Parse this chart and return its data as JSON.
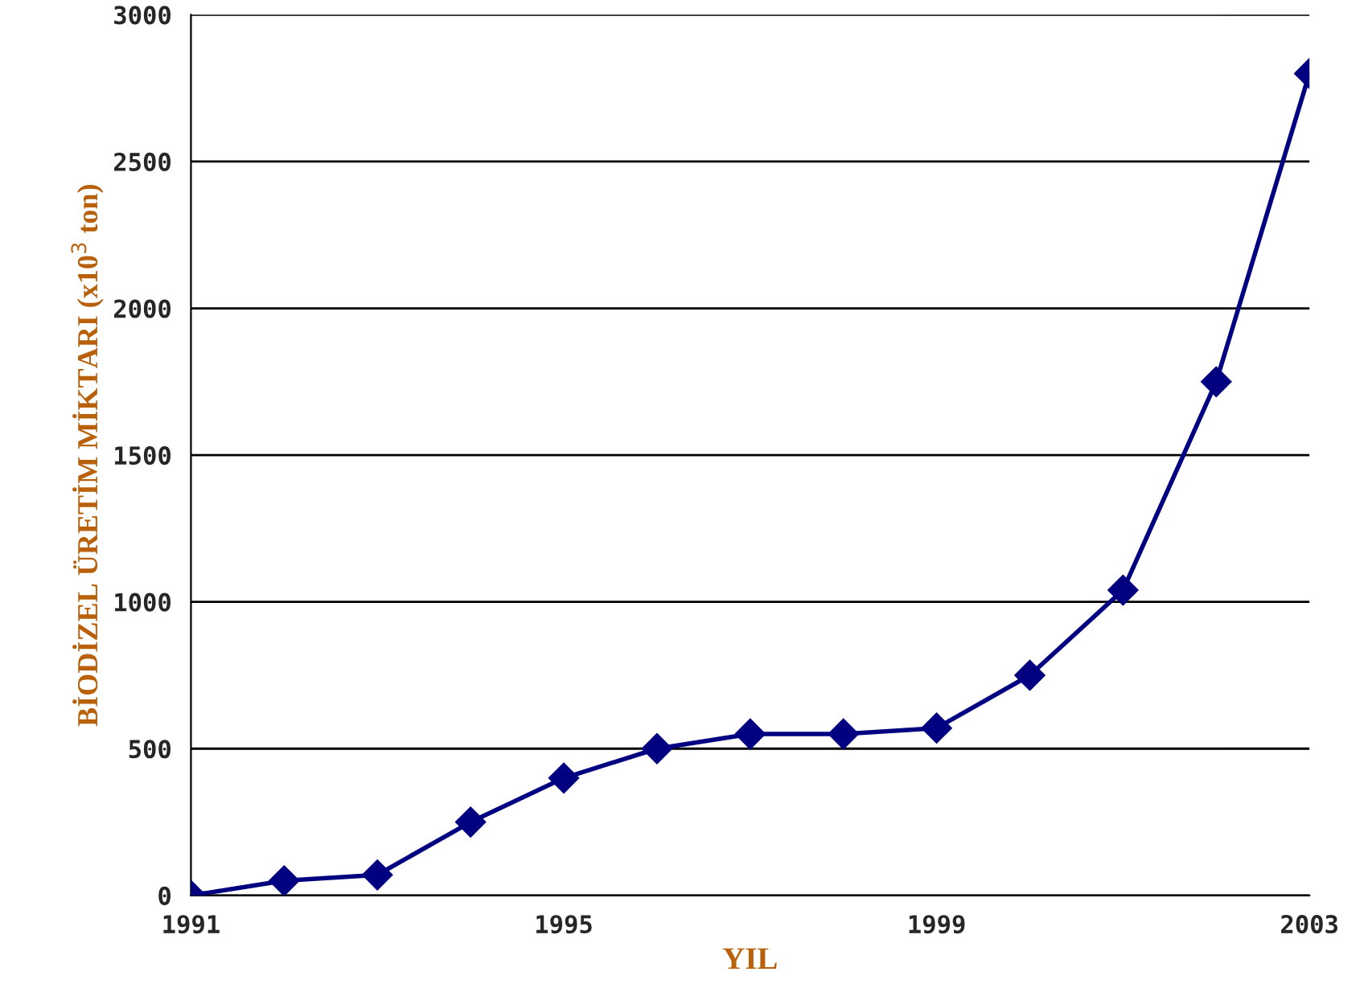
{
  "chart_data": {
    "type": "line",
    "xlabel": "YIL",
    "ylabel": "BİODİZEL ÜRETİM MİKTARI (x10$^{3}$ ton)",
    "x": [
      1991,
      1992,
      1993,
      1994,
      1995,
      1996,
      1997,
      1998,
      1999,
      2000,
      2001,
      2002,
      2003
    ],
    "series": [
      {
        "color": "#000080",
        "values": [
          0,
          50,
          70,
          250,
          400,
          500,
          550,
          550,
          570,
          750,
          1040,
          1750,
          2800
        ]
      }
    ],
    "xlim": [
      1991,
      2003
    ],
    "xticks": [
      1991,
      1995,
      1999,
      2003
    ],
    "ylim": [
      0,
      3000
    ],
    "yticks": [
      0,
      500,
      1000,
      1500,
      2000,
      2500,
      3000
    ],
    "grid": "y",
    "marker": "diamond",
    "line_style": "solid",
    "legend": false
  }
}
